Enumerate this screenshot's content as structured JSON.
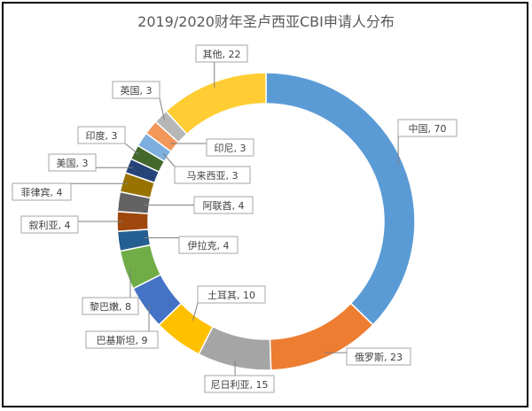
{
  "chart_data": {
    "type": "pie",
    "variant": "donut",
    "title": "2019/2020财年圣卢西亚CBI申请人分布",
    "slices": [
      {
        "label": "中国",
        "value": 70,
        "color": "#5B9BD5"
      },
      {
        "label": "俄罗斯",
        "value": 23,
        "color": "#ED7D31"
      },
      {
        "label": "尼日利亚",
        "value": 15,
        "color": "#A5A5A5"
      },
      {
        "label": "土耳其",
        "value": 10,
        "color": "#FFC000"
      },
      {
        "label": "巴基斯坦",
        "value": 9,
        "color": "#4472C4"
      },
      {
        "label": "黎巴嫩",
        "value": 8,
        "color": "#70AD47"
      },
      {
        "label": "伊拉克",
        "value": 4,
        "color": "#255E91"
      },
      {
        "label": "叙利亚",
        "value": 4,
        "color": "#9E480E"
      },
      {
        "label": "阿联酋",
        "value": 4,
        "color": "#636363"
      },
      {
        "label": "菲律宾",
        "value": 4,
        "color": "#997300"
      },
      {
        "label": "美国",
        "value": 3,
        "color": "#264478"
      },
      {
        "label": "印度",
        "value": 3,
        "color": "#43682B"
      },
      {
        "label": "马来西亚",
        "value": 3,
        "color": "#7CAFDD"
      },
      {
        "label": "印尼",
        "value": 3,
        "color": "#F1975A"
      },
      {
        "label": "英国",
        "value": 3,
        "color": "#B7B7B7"
      },
      {
        "label": "其他",
        "value": 22,
        "color": "#FFCD33"
      }
    ],
    "data_labels": [
      "中国, 70",
      "俄罗斯, 23",
      "尼日利亚, 15",
      "土耳其, 10",
      "巴基斯坦, 9",
      "黎巴嫩, 8",
      "伊拉克, 4",
      "叙利亚, 4",
      "阿联酋, 4",
      "菲律宾, 4",
      "美国, 3",
      "印度, 3",
      "马来西亚, 3",
      "印尼, 3",
      "英国, 3",
      "其他, 22"
    ],
    "legend": "none"
  }
}
